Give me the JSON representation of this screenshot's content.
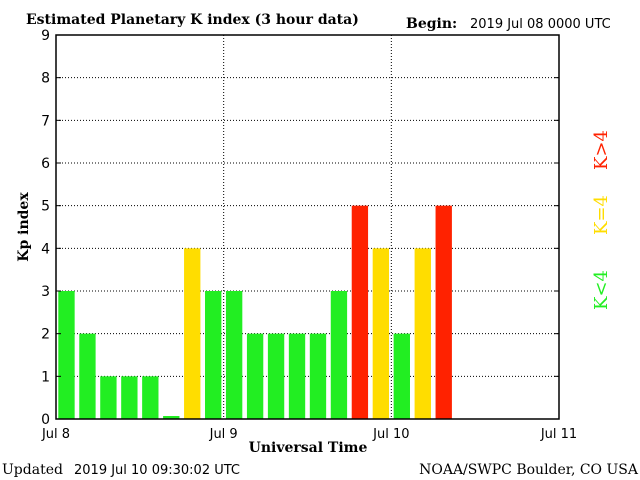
{
  "header": {
    "title": "Estimated Planetary K index (3 hour data)",
    "begin_label": "Begin:",
    "begin_value": "2019 Jul 08 0000 UTC"
  },
  "footer": {
    "updated_label": "Updated",
    "updated_value": "2019 Jul 10 09:30:02 UTC",
    "credit": "NOAA/SWPC Boulder, CO USA"
  },
  "legend": {
    "high": "K>4",
    "mid": "K=4",
    "low": "K<4"
  },
  "colors": {
    "low": "#22ee22",
    "mid": "#ffdd00",
    "high": "#ff2200"
  },
  "chart_data": {
    "type": "bar",
    "title": "Estimated Planetary K index (3 hour data)",
    "xlabel": "Universal Time",
    "ylabel": "Kp index",
    "ylim": [
      0,
      9
    ],
    "yticks": [
      "0",
      "1",
      "2",
      "3",
      "4",
      "5",
      "6",
      "7",
      "8",
      "9"
    ],
    "xticks": [
      "Jul 8",
      "Jul 9",
      "Jul 10",
      "Jul 11"
    ],
    "bins_per_day": 8,
    "days": 3,
    "grid": true,
    "values": [
      3,
      2,
      1,
      1,
      1,
      0,
      4,
      3,
      3,
      2,
      2,
      2,
      2,
      3,
      5,
      4,
      2,
      4,
      5
    ]
  }
}
